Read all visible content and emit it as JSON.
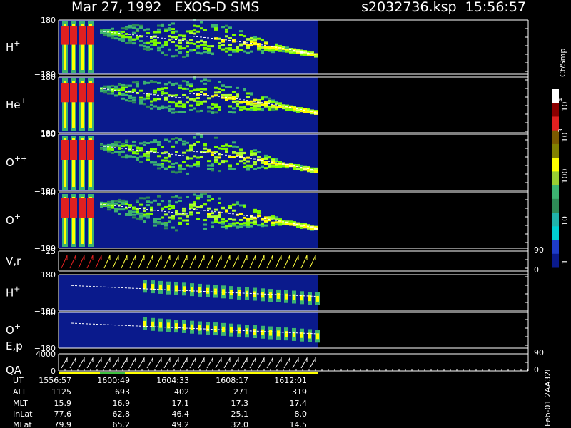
{
  "header": {
    "title": "Mar 27, 1992   EXOS-D SMS",
    "file": "s2032736.ksp  15:56:57"
  },
  "panels": [
    {
      "label": {
        "base": "H",
        "sup": "+"
      },
      "left_ticks": [
        "180",
        "−180"
      ]
    },
    {
      "label": {
        "base": "He",
        "sup": "+"
      },
      "left_ticks": [
        "180",
        "−180"
      ]
    },
    {
      "label": {
        "base": "O",
        "sup": "++"
      },
      "left_ticks": [
        "180",
        "−180"
      ]
    },
    {
      "label": {
        "base": "O",
        "sup": "+"
      },
      "left_ticks": [
        "180",
        "−180"
      ]
    },
    {
      "label": {
        "base": "V,r",
        "sup": ""
      },
      "left_ticks": [
        "25"
      ],
      "right_ticks": [
        "90",
        "0"
      ]
    },
    {
      "label": {
        "base": "H",
        "sup": "+"
      },
      "left_ticks": [
        "180",
        "−180"
      ]
    },
    {
      "label": {
        "base": "O",
        "sup": "+"
      },
      "left_ticks": [
        "180",
        "−180"
      ]
    },
    {
      "label": {
        "base": "E,p",
        "sup": ""
      },
      "sublabel": "QA",
      "left_ticks": [
        "4000",
        "0"
      ],
      "right_ticks": [
        "90",
        "0"
      ]
    }
  ],
  "colorbar": {
    "title": "Ct/Smp",
    "ticks": [
      {
        "base": "10",
        "sup": "4"
      },
      {
        "base": "10",
        "sup": "3"
      },
      {
        "base": "100",
        "sup": ""
      },
      {
        "base": "10",
        "sup": ""
      },
      {
        "base": "1",
        "sup": ""
      }
    ]
  },
  "table": {
    "rows": [
      {
        "name": "UT",
        "values": [
          "1556:57",
          "1600:49",
          "1604:33",
          "1608:17",
          "1612:01"
        ]
      },
      {
        "name": "ALT",
        "values": [
          "1125",
          "693",
          "402",
          "271",
          "319"
        ]
      },
      {
        "name": "MLT",
        "values": [
          "15.9",
          "16.9",
          "17.1",
          "17.3",
          "17.4"
        ]
      },
      {
        "name": "InLat",
        "values": [
          "77.6",
          "62.8",
          "46.4",
          "25.1",
          "8.0"
        ]
      },
      {
        "name": "MLat",
        "values": [
          "79.9",
          "65.2",
          "49.2",
          "32.0",
          "14.5"
        ]
      }
    ]
  },
  "footer_note": "Feb-01 2AA32L"
}
